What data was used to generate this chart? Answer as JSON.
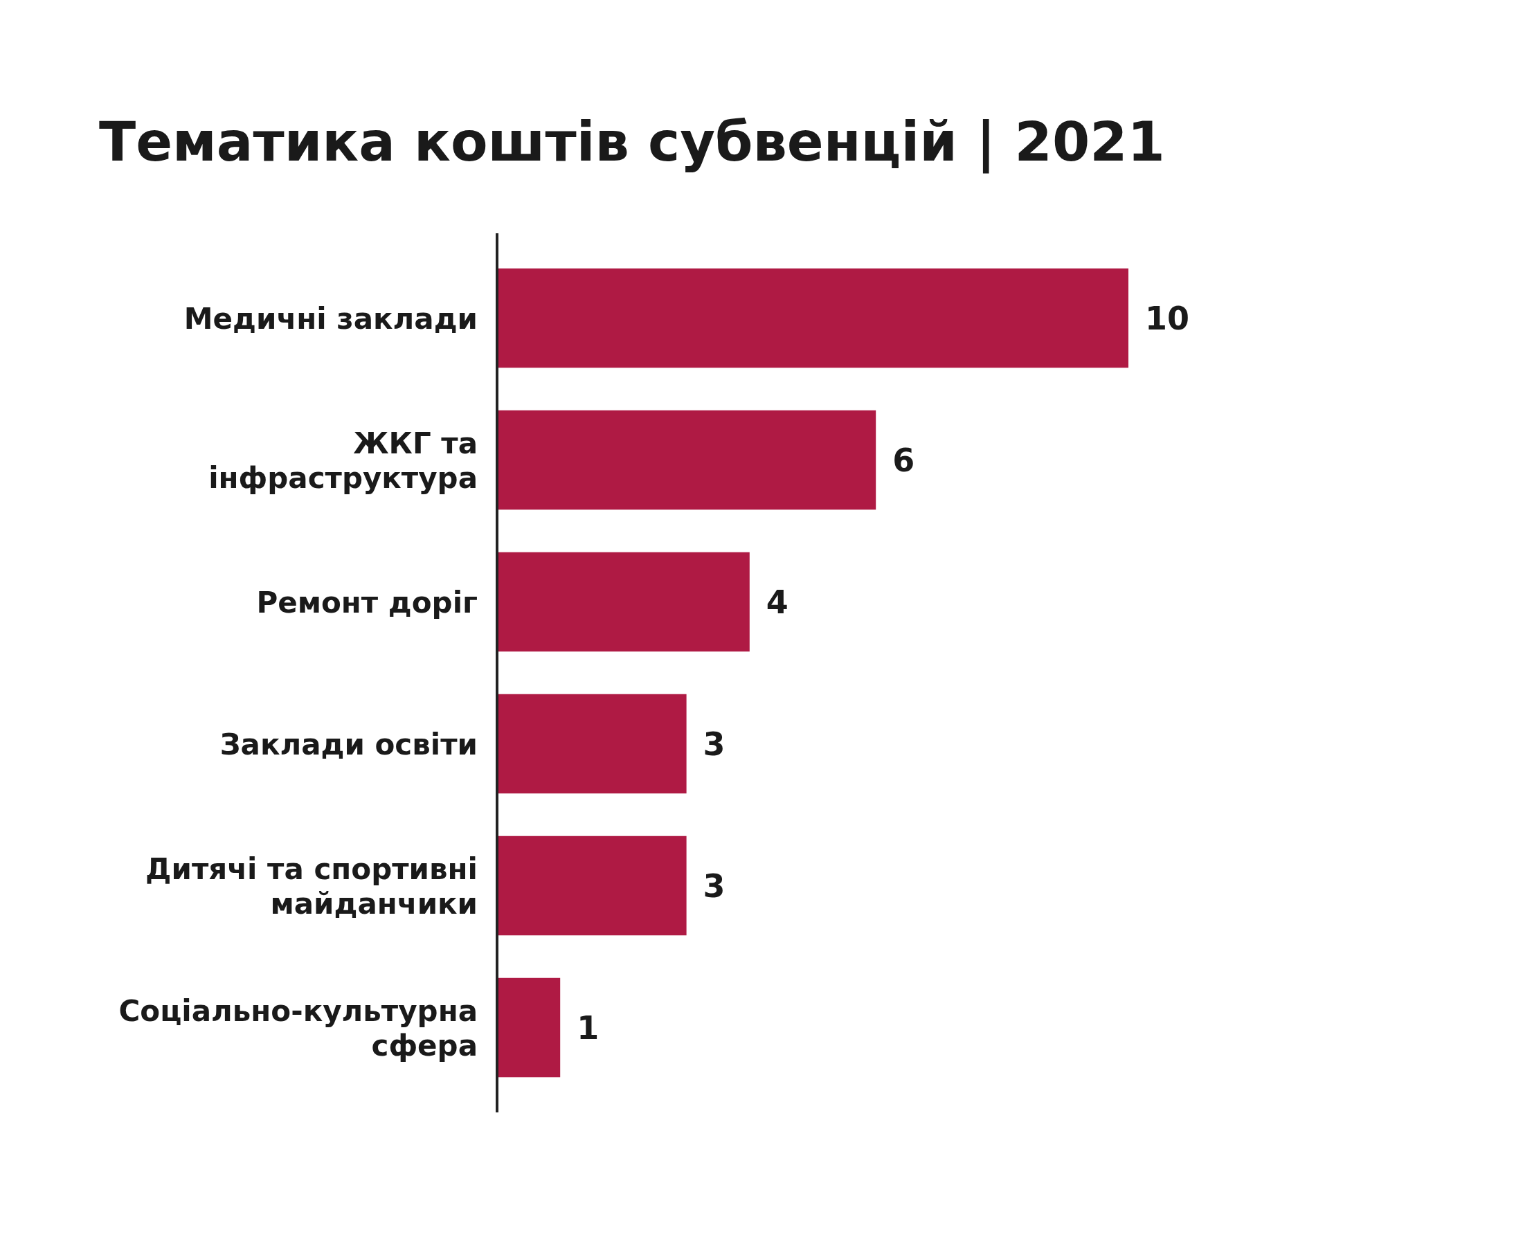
{
  "chart_data": {
    "type": "bar",
    "orientation": "horizontal",
    "title": "Тематика коштів субвенцій | 2021",
    "categories": [
      "Медичні заклади",
      "ЖКГ та інфраструктура",
      "Ремонт доріг",
      "Заклади освіти",
      "Дитячі та спортивні майданчики",
      "Соціально-культурна сфера"
    ],
    "values": [
      10,
      6,
      4,
      3,
      3,
      1
    ],
    "color": "#af1a44",
    "data_labels": true
  }
}
